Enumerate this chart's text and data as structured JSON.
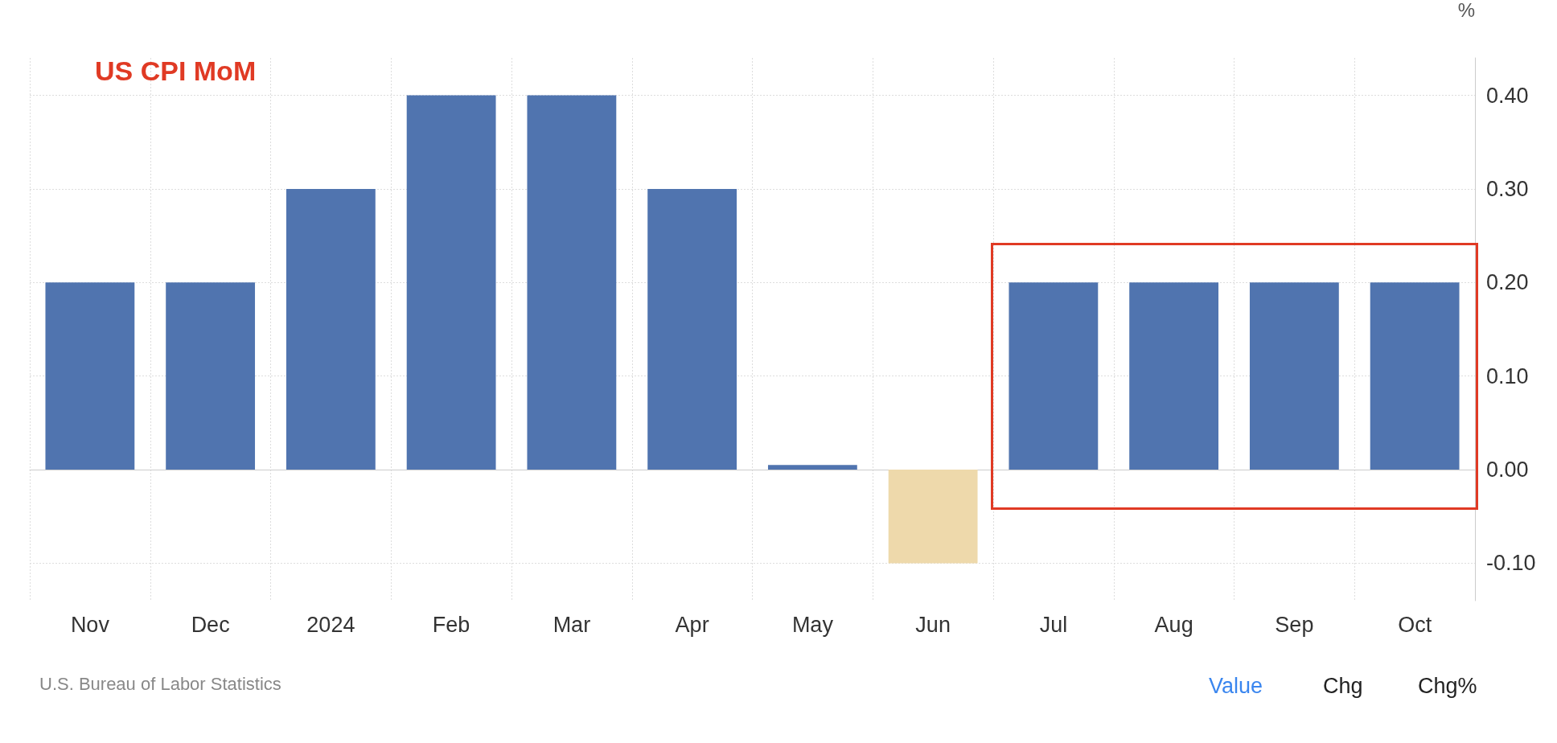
{
  "chart_data": {
    "type": "bar",
    "title": "US CPI MoM",
    "ylabel": "%",
    "categories": [
      "Nov",
      "Dec",
      "2024",
      "Feb",
      "Mar",
      "Apr",
      "May",
      "Jun",
      "Jul",
      "Aug",
      "Sep",
      "Oct"
    ],
    "values": [
      0.2,
      0.2,
      0.3,
      0.4,
      0.4,
      0.3,
      0.005,
      -0.1,
      0.2,
      0.2,
      0.2,
      0.2
    ],
    "colors": [
      "#5074af",
      "#5074af",
      "#5074af",
      "#5074af",
      "#5074af",
      "#5074af",
      "#5074af",
      "#eed9ab",
      "#5074af",
      "#5074af",
      "#5074af",
      "#5074af"
    ],
    "ylim": [
      -0.14,
      0.44
    ],
    "yticks": [
      {
        "value": -0.1,
        "label": "-0.10"
      },
      {
        "value": 0,
        "label": "0.00"
      },
      {
        "value": 0.1,
        "label": "0.10"
      },
      {
        "value": 0.2,
        "label": "0.20"
      },
      {
        "value": 0.3,
        "label": "0.30"
      },
      {
        "value": 0.4,
        "label": "0.40"
      }
    ],
    "grid": true,
    "annotations": [
      "U.S. Bureau of Labor Statistics",
      "Value",
      "Chg",
      "Chg%"
    ]
  }
}
